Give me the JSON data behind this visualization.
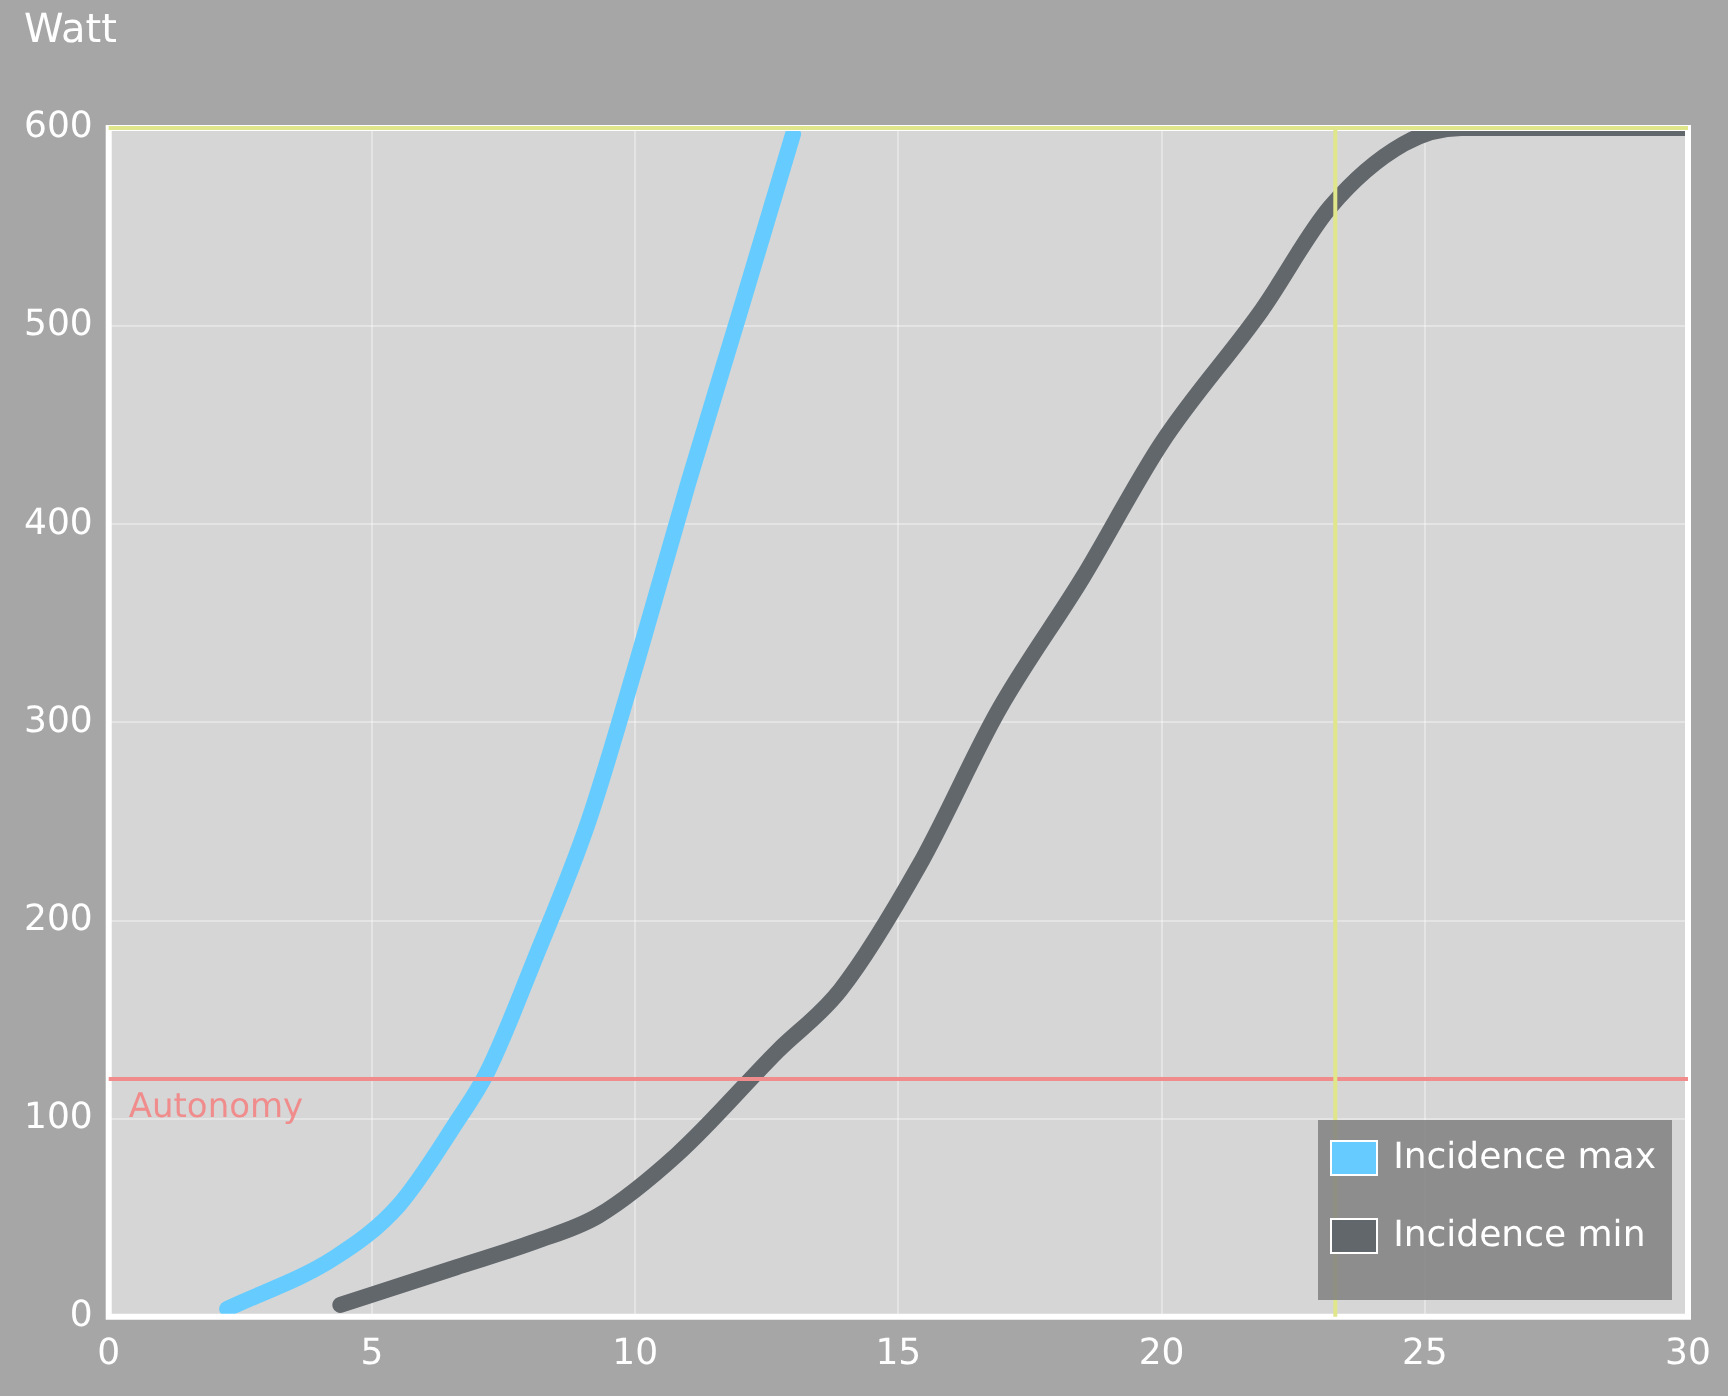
{
  "chart_data": {
    "type": "line",
    "ylabel": "Watt",
    "series": [
      {
        "name": "Incidence max",
        "color": "#66ccff",
        "x": [
          2.25,
          4.3,
          5.5,
          6.6,
          7.2,
          8.1,
          9.1,
          10.05,
          11.0,
          12.0,
          13.0
        ],
        "values": [
          4,
          30,
          56,
          98,
          124,
          181,
          249,
          332,
          420,
          508,
          597
        ]
      },
      {
        "name": "Incidence min",
        "color": "#62676b",
        "x": [
          4.4,
          6.6,
          8.1,
          9.3,
          10.8,
          12.7,
          13.9,
          15.4,
          16.9,
          18.5,
          20,
          21.9,
          23.2,
          24.6,
          25.7,
          26.9,
          30
        ],
        "values": [
          6,
          25,
          38,
          51,
          82,
          134,
          165,
          228,
          306,
          373,
          441,
          508,
          560,
          592,
          600,
          600,
          600
        ]
      }
    ],
    "xlim": [
      0,
      30
    ],
    "xticks": [
      0,
      5,
      10,
      15,
      20,
      25,
      30
    ],
    "ylim": [
      0,
      600
    ],
    "yticks": [
      0,
      100,
      200,
      300,
      400,
      500,
      600
    ],
    "grid": true,
    "legend": "bottom right",
    "marker": "none",
    "line_style": "solid",
    "ref_lines": [
      {
        "axis": "y",
        "value": 120,
        "label": "Autonomy",
        "color": "#f08c8c"
      },
      {
        "axis": "x",
        "value": 23.3,
        "color": "#e0e68a"
      },
      {
        "axis": "y",
        "value": 600,
        "color": "#e0e68a"
      }
    ]
  }
}
